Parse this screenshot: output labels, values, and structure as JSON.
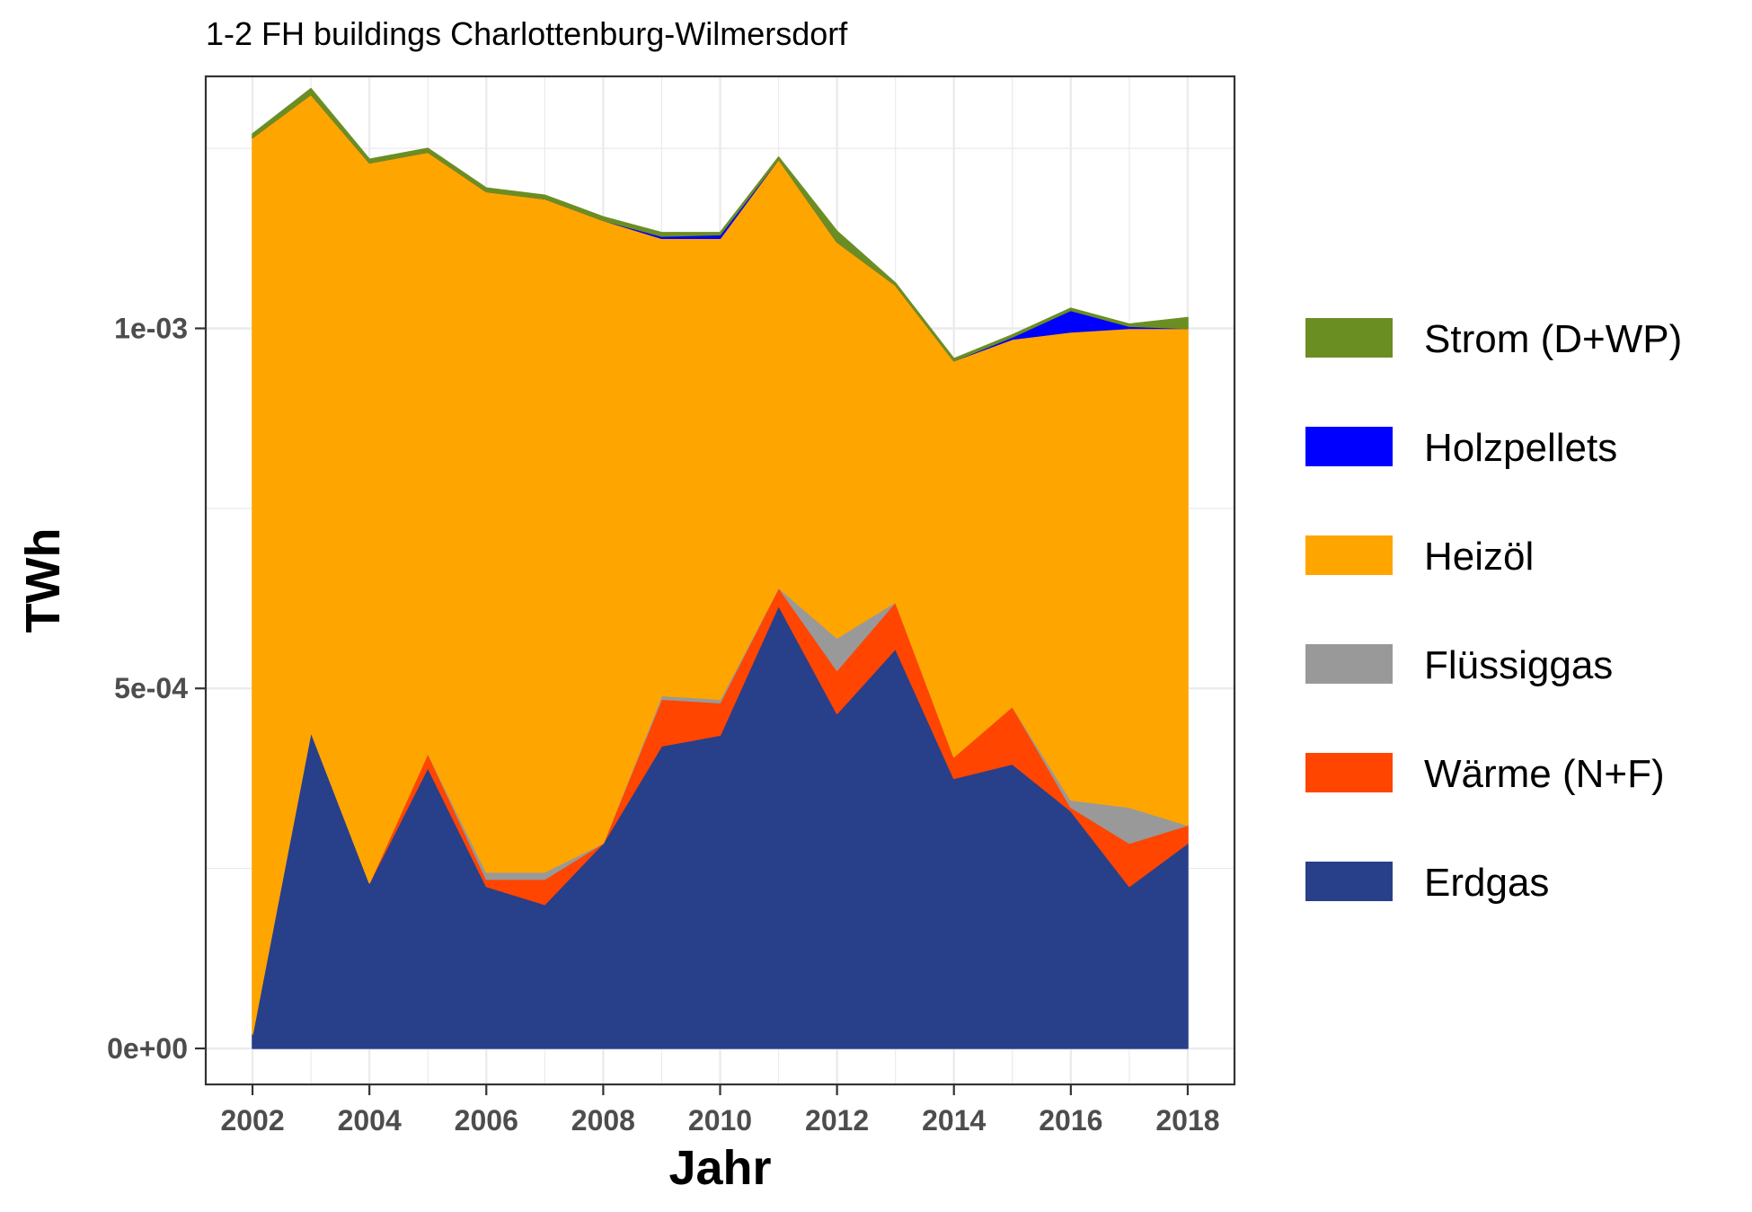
{
  "chart_data": {
    "type": "area",
    "stacked": true,
    "title": "1-2 FH buildings Charlottenburg-Wilmersdorf",
    "xlabel": "Jahr",
    "ylabel": "TWh",
    "xlim": [
      2001.2,
      2018.8
    ],
    "ylim": [
      -5e-05,
      0.00135
    ],
    "x_ticks": [
      2002,
      2004,
      2006,
      2008,
      2010,
      2012,
      2014,
      2016,
      2018
    ],
    "x_tick_labels": [
      "2002",
      "2004",
      "2006",
      "2008",
      "2010",
      "2012",
      "2014",
      "2016",
      "2018"
    ],
    "y_ticks": [
      0,
      0.0005,
      0.001
    ],
    "y_tick_labels": [
      "0e+00",
      "5e-04",
      "1e-03"
    ],
    "grid": true,
    "legend_position": "right",
    "x": [
      2002,
      2003,
      2004,
      2005,
      2006,
      2007,
      2008,
      2009,
      2010,
      2011,
      2012,
      2013,
      2014,
      2015,
      2016,
      2017,
      2018
    ],
    "series": [
      {
        "name": "Erdgas",
        "color": "#283f8a",
        "values": [
          2e-05,
          0.00044,
          0.00023,
          0.00039,
          0.000225,
          0.0002,
          0.000285,
          0.00042,
          0.000435,
          0.000615,
          0.000465,
          0.000555,
          0.000375,
          0.000395,
          0.00033,
          0.000225,
          0.000285
        ]
      },
      {
        "name": "Wärme (N+F)",
        "color": "#ff4500",
        "values": [
          0,
          0,
          0,
          2e-05,
          1e-05,
          3.5e-05,
          0,
          6.5e-05,
          4.5e-05,
          2.5e-05,
          6e-05,
          6.5e-05,
          3e-05,
          8e-05,
          5e-06,
          6e-05,
          2.5e-05
        ]
      },
      {
        "name": "Flüssiggas",
        "color": "#999999",
        "values": [
          0,
          0,
          0,
          0,
          1e-05,
          1e-05,
          0,
          5e-06,
          5e-06,
          0,
          4.5e-05,
          0,
          0,
          0,
          1e-05,
          5e-05,
          0
        ]
      },
      {
        "name": "Heizöl",
        "color": "#ffa500",
        "values": [
          0.001245,
          0.000885,
          0.001,
          0.000835,
          0.000945,
          0.000935,
          0.000865,
          0.000635,
          0.00064,
          0.000595,
          0.00055,
          0.00044,
          0.00055,
          0.00051,
          0.00065,
          0.000665,
          0.00069
        ]
      },
      {
        "name": "Holzpellets",
        "color": "#0000ff",
        "values": [
          0,
          0,
          0,
          0,
          0,
          0,
          0,
          3e-06,
          5e-06,
          0,
          0,
          0,
          0,
          3e-06,
          3e-05,
          3e-06,
          0
        ]
      },
      {
        "name": "Strom (D+WP)",
        "color": "#6b8e23",
        "values": [
          5e-06,
          8e-06,
          5e-06,
          5e-06,
          5e-06,
          5e-06,
          5e-06,
          5e-06,
          3e-06,
          3e-06,
          1.5e-05,
          3e-06,
          3e-06,
          3e-06,
          3e-06,
          3e-06,
          1.5e-05
        ]
      }
    ],
    "legend_order": [
      "Strom (D+WP)",
      "Holzpellets",
      "Heizöl",
      "Flüssiggas",
      "Wärme (N+F)",
      "Erdgas"
    ]
  }
}
